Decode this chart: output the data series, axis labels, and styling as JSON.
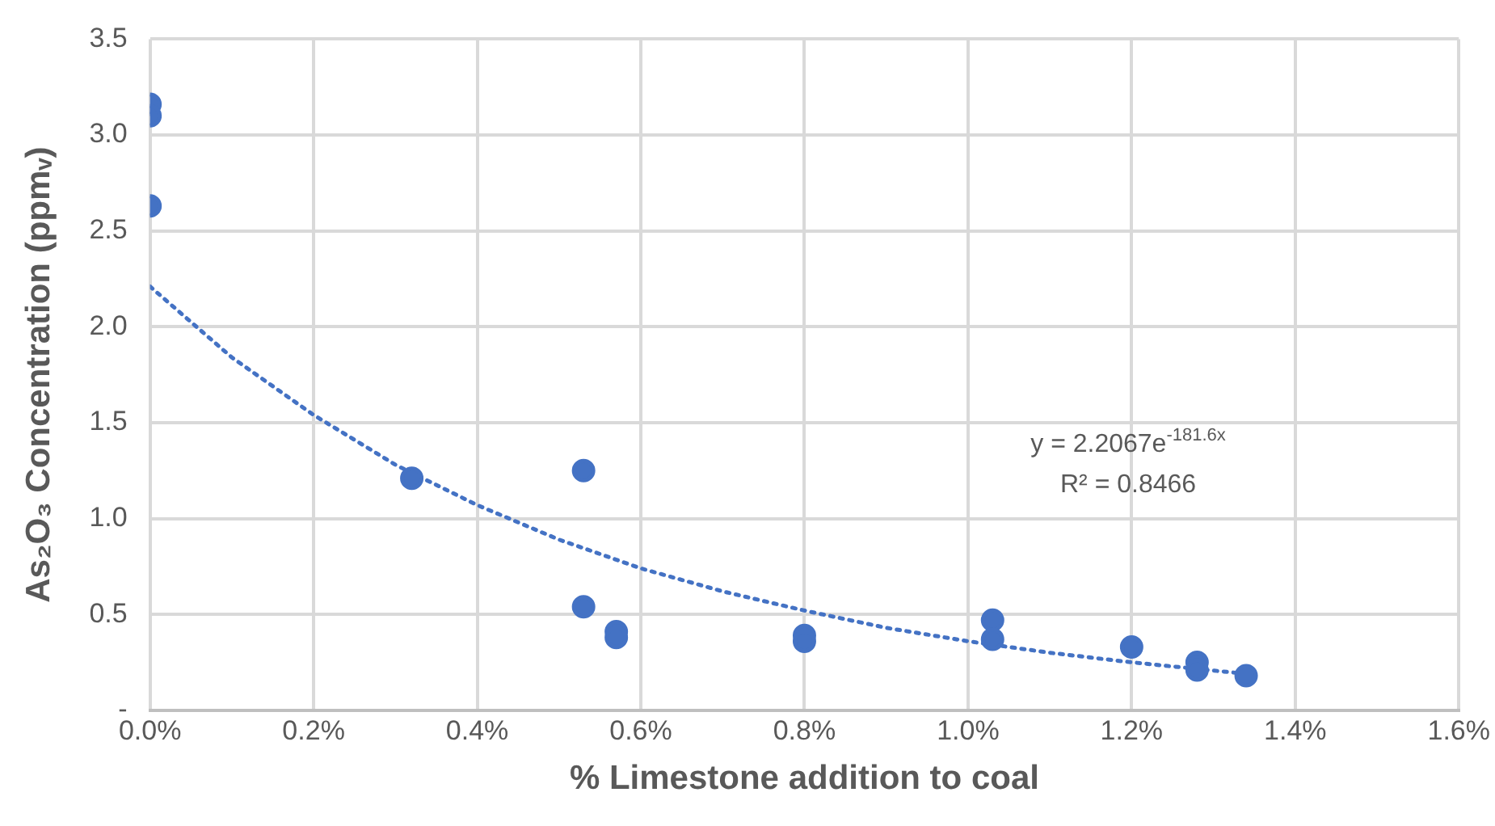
{
  "chart_data": {
    "type": "scatter",
    "xlabel": "% Limestone addition to coal",
    "ylabel": "As₂O₃ Concentration (ppmᵥ)",
    "xlim": [
      0,
      1.6
    ],
    "xticks": [
      {
        "value": 0,
        "label": "0.0%"
      },
      {
        "value": 0.2,
        "label": "0.2%"
      },
      {
        "value": 0.4,
        "label": "0.4%"
      },
      {
        "value": 0.6,
        "label": "0.6%"
      },
      {
        "value": 0.8,
        "label": "0.8%"
      },
      {
        "value": 1.0,
        "label": "1.0%"
      },
      {
        "value": 1.2,
        "label": "1.2%"
      },
      {
        "value": 1.4,
        "label": "1.4%"
      },
      {
        "value": 1.6,
        "label": "1.6%"
      }
    ],
    "ylim": [
      0,
      3.5
    ],
    "yticks": [
      {
        "value": 0,
        "label": "-"
      },
      {
        "value": 0.5,
        "label": "0.5"
      },
      {
        "value": 1.0,
        "label": "1.0"
      },
      {
        "value": 1.5,
        "label": "1.5"
      },
      {
        "value": 2.0,
        "label": "2.0"
      },
      {
        "value": 2.5,
        "label": "2.5"
      },
      {
        "value": 3.0,
        "label": "3.0"
      },
      {
        "value": 3.5,
        "label": "3.5"
      }
    ],
    "grid": true,
    "legend": false,
    "marker": "circle",
    "series": [
      {
        "type": "scatter",
        "color": "#4472c4",
        "x": [
          0,
          0,
          0,
          0.32,
          0.53,
          0.53,
          0.57,
          0.57,
          0.8,
          0.8,
          1.03,
          1.03,
          1.2,
          1.28,
          1.28,
          1.34
        ],
        "values": [
          3.16,
          3.1,
          2.63,
          1.21,
          1.25,
          0.54,
          0.41,
          0.38,
          0.39,
          0.36,
          0.47,
          0.37,
          0.33,
          0.25,
          0.21,
          0.18
        ]
      },
      {
        "type": "line",
        "color": "#4472c4",
        "line_style": "dotted",
        "marker": "none",
        "x": [
          0,
          0.1,
          0.2,
          0.3,
          0.4,
          0.5,
          0.6,
          0.7,
          0.8,
          0.9,
          1.0,
          1.1,
          1.2,
          1.34
        ],
        "values": [
          2.21,
          1.84,
          1.54,
          1.28,
          1.07,
          0.89,
          0.74,
          0.62,
          0.52,
          0.43,
          0.36,
          0.3,
          0.25,
          0.19
        ]
      }
    ],
    "annotations": [
      "y = 2.2067e$^{-181.6x}$",
      "R² = 0.8466"
    ]
  }
}
